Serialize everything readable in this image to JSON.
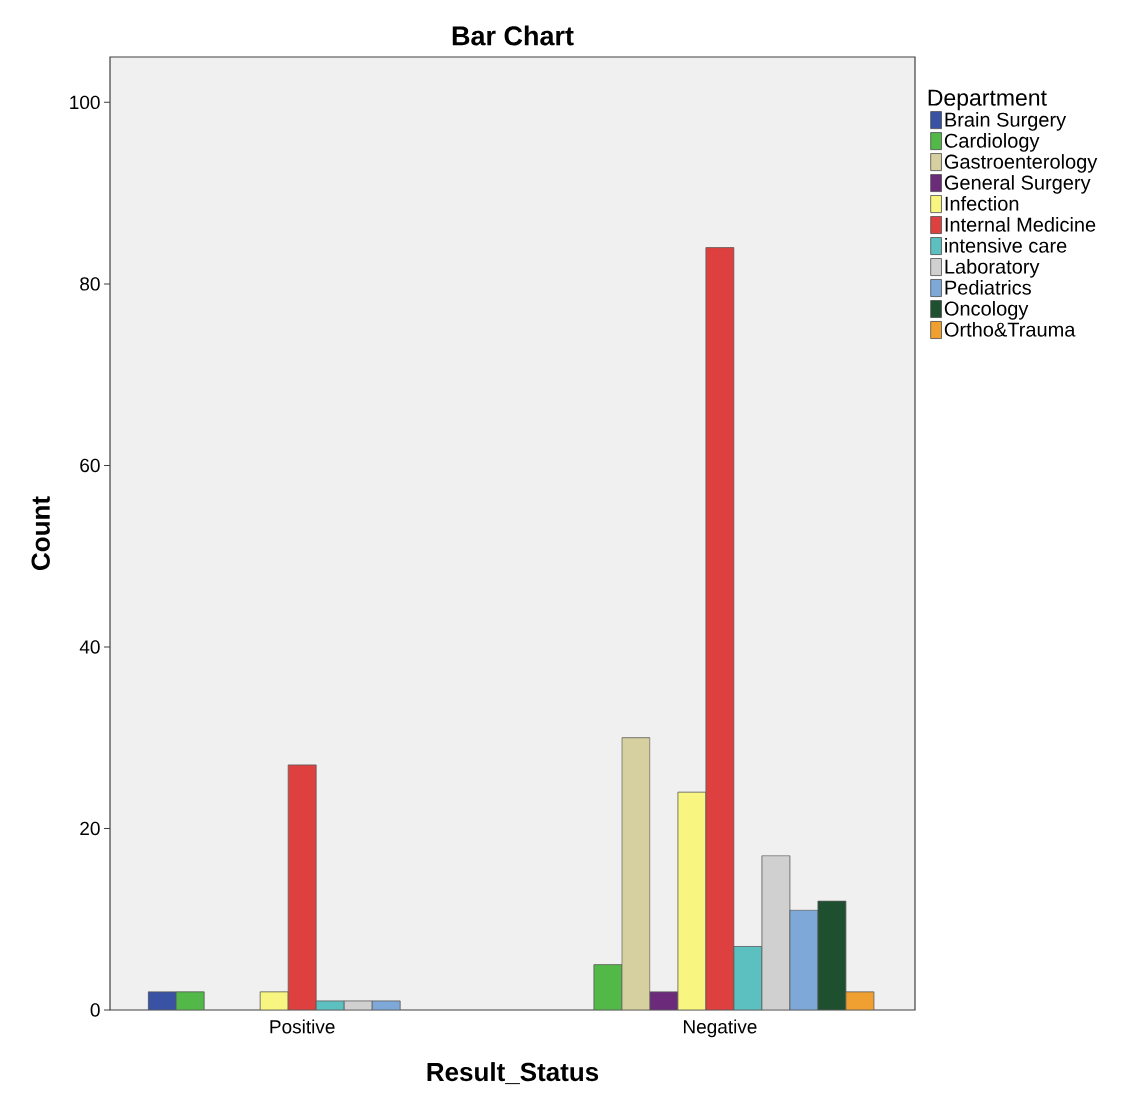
{
  "chart_data": {
    "type": "bar",
    "title": "Bar Chart",
    "xlabel": "Result_Status",
    "ylabel": "Count",
    "legend_title": "Department",
    "categories": [
      "Positive",
      "Negative"
    ],
    "series": [
      {
        "name": "Brain Surgery",
        "color": "#3a52a4",
        "values": [
          2,
          null
        ]
      },
      {
        "name": "Cardiology",
        "color": "#52b848",
        "values": [
          2,
          5
        ]
      },
      {
        "name": "Gastroenterology",
        "color": "#d6d0a0",
        "values": [
          null,
          30
        ]
      },
      {
        "name": "General Surgery",
        "color": "#6b2a7a",
        "values": [
          null,
          2
        ]
      },
      {
        "name": "Infection",
        "color": "#f8f680",
        "values": [
          2,
          24
        ]
      },
      {
        "name": "Internal Medicine",
        "color": "#de4040",
        "values": [
          27,
          84
        ]
      },
      {
        "name": "intensive care",
        "color": "#5cc0c0",
        "values": [
          1,
          7
        ]
      },
      {
        "name": "Laboratory",
        "color": "#d0d0d0",
        "values": [
          1,
          17
        ]
      },
      {
        "name": "Pediatrics",
        "color": "#7ea8d8",
        "values": [
          1,
          11
        ]
      },
      {
        "name": "Oncology",
        "color": "#1e5030",
        "values": [
          null,
          12
        ]
      },
      {
        "name": "Ortho&Trauma",
        "color": "#f0a030",
        "values": [
          null,
          2
        ]
      }
    ],
    "ylim": [
      0,
      105
    ],
    "yticks": [
      0,
      20,
      40,
      60,
      80,
      100
    ],
    "legend": "right"
  }
}
